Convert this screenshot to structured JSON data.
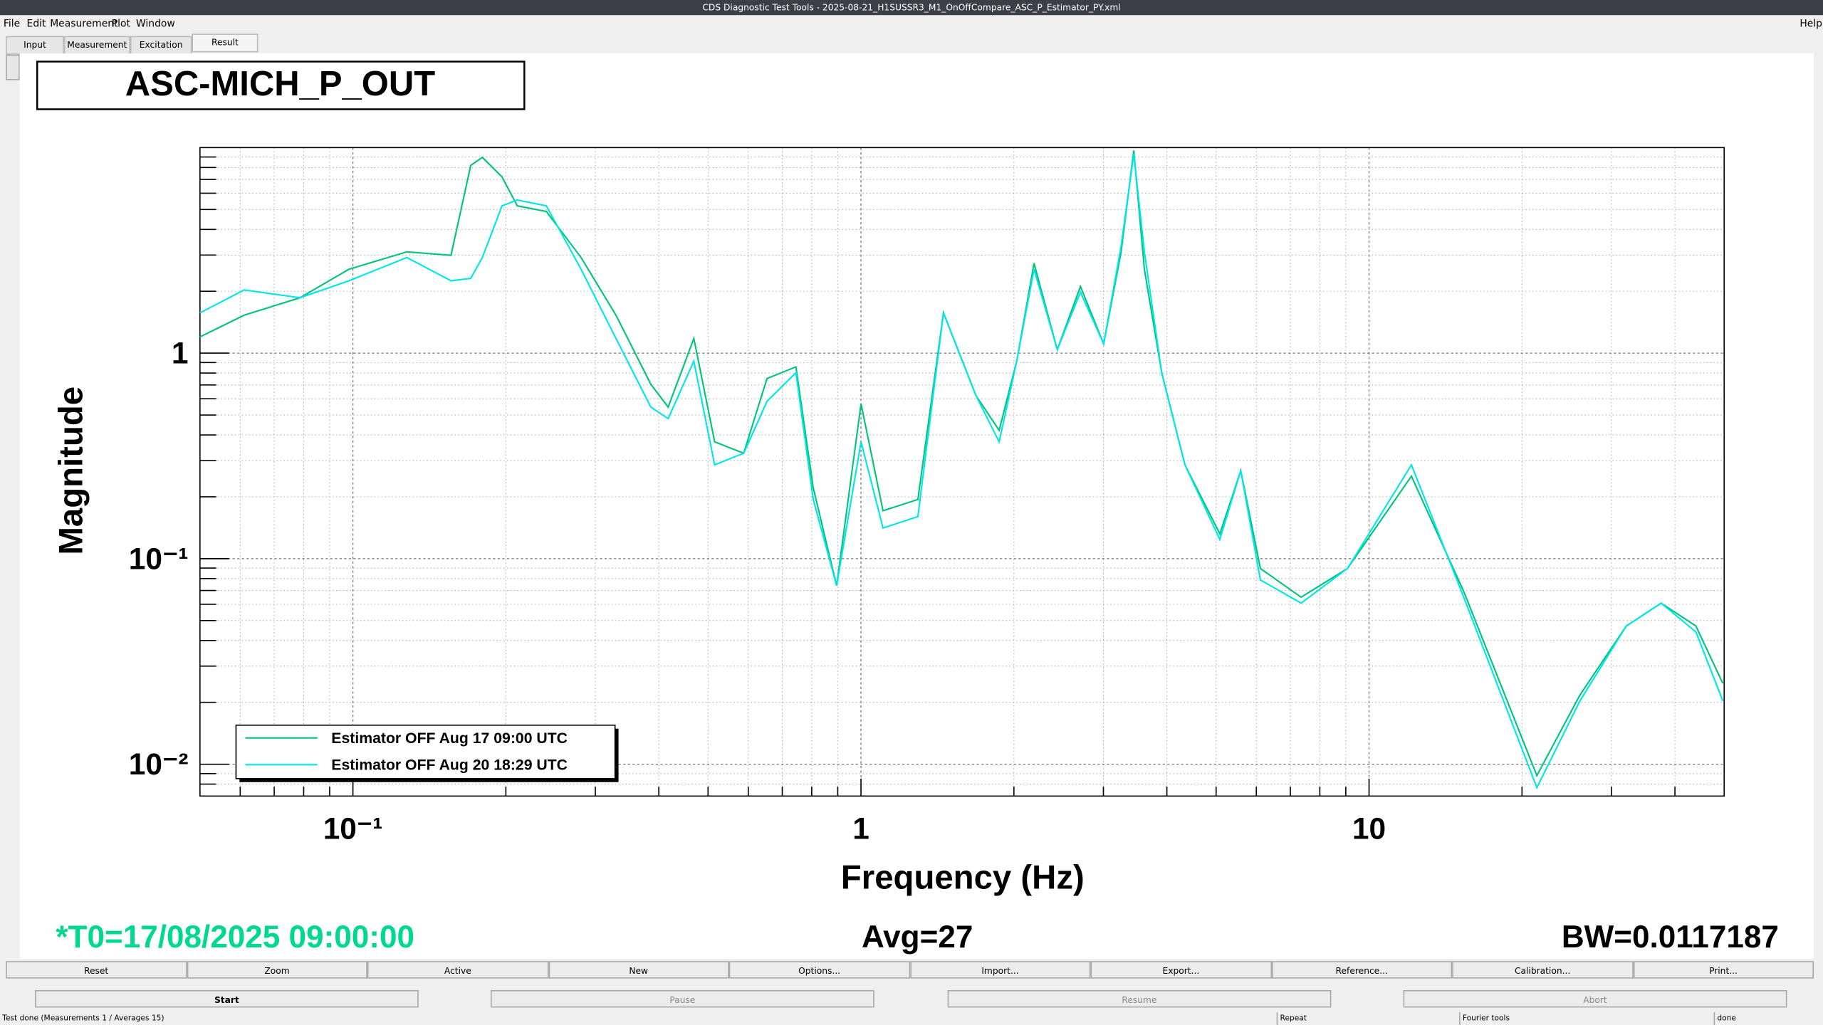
{
  "window": {
    "title": "CDS Diagnostic Test Tools - 2025-08-21_H1SUSSR3_M1_OnOffCompare_ASC_P_Estimator_PY.xml"
  },
  "menu": {
    "items": [
      "File",
      "Edit",
      "Measurement",
      "Plot",
      "Window"
    ],
    "help": "Help"
  },
  "tabs": [
    "Input",
    "Measurement",
    "Excitation",
    "Result"
  ],
  "plot_title": "ASC-MICH_P_OUT",
  "chart_data": {
    "type": "line",
    "xlabel": "Frequency (Hz)",
    "ylabel": "Magnitude",
    "log_x": true,
    "log_y": true,
    "grid": true,
    "legend": "lower-left",
    "x": [
      0.05,
      0.0611,
      0.0787,
      0.0982,
      0.1277,
      0.156,
      0.1706,
      0.1798,
      0.1966,
      0.2106,
      0.2402,
      0.2812,
      0.3294,
      0.3858,
      0.4174,
      0.4688,
      0.5152,
      0.5877,
      0.653,
      0.7447,
      0.8057,
      0.8953,
      1.0,
      1.105,
      1.294,
      1.453,
      1.684,
      1.871,
      2.025,
      2.191,
      2.434,
      2.704,
      3.004,
      3.251,
      3.444,
      3.612,
      3.908,
      4.342,
      5.086,
      5.59,
      6.113,
      7.351,
      9.07,
      12.12,
      15.36,
      21.4,
      26.0,
      32.08,
      37.57,
      44.0,
      49.7
    ],
    "series": [
      {
        "name": "Estimator OFF Aug 17 09:00 UTC",
        "color": "#00c47a",
        "values": [
          1.2,
          1.53,
          1.86,
          2.56,
          3.11,
          2.99,
          8.19,
          8.96,
          7.2,
          5.21,
          4.89,
          2.92,
          1.53,
          0.706,
          0.546,
          1.18,
          0.37,
          0.326,
          0.753,
          0.857,
          0.221,
          0.0739,
          0.567,
          0.171,
          0.194,
          1.57,
          0.621,
          0.421,
          0.914,
          2.735,
          1.04,
          2.11,
          1.11,
          3.11,
          9.68,
          2.56,
          0.803,
          0.286,
          0.132,
          0.268,
          0.0896,
          0.0649,
          0.0896,
          0.252,
          0.0692,
          0.0088,
          0.0217,
          0.047,
          0.0608,
          0.047,
          0.0247
        ]
      },
      {
        "name": "Estimator OFF Aug 20 18:29 UTC",
        "color": "#00e6e6",
        "values": [
          1.57,
          2.03,
          1.86,
          2.25,
          2.92,
          2.25,
          2.31,
          2.92,
          5.21,
          5.56,
          5.21,
          2.56,
          1.18,
          0.546,
          0.48,
          0.914,
          0.286,
          0.326,
          0.582,
          0.803,
          0.194,
          0.0739,
          0.37,
          0.141,
          0.16,
          1.57,
          0.621,
          0.37,
          0.914,
          2.56,
          1.04,
          1.98,
          1.11,
          3.32,
          9.31,
          3.11,
          0.803,
          0.286,
          0.124,
          0.268,
          0.0788,
          0.0608,
          0.0896,
          0.286,
          0.0649,
          0.0077,
          0.0203,
          0.047,
          0.0608,
          0.044,
          0.0203
        ]
      }
    ],
    "xlim": [
      0.05,
      50
    ],
    "ylim": [
      0.007,
      10
    ],
    "xticks": [
      {
        "value": 0.1,
        "label": "10⁻¹"
      },
      1,
      10
    ],
    "yticks": [
      {
        "value": 0.01,
        "label": "10⁻²"
      },
      {
        "value": 0.1,
        "label": "10⁻¹"
      },
      1
    ]
  },
  "info": {
    "t0": "*T0=17/08/2025 09:00:00",
    "avg": "Avg=27",
    "bw": "BW=0.0117187"
  },
  "buttons": [
    "Reset",
    "Zoom",
    "Active",
    "New",
    "Options...",
    "Import...",
    "Export...",
    "Reference...",
    "Calibration...",
    "Print..."
  ],
  "run_buttons": [
    "Start",
    "Pause",
    "Resume",
    "Abort"
  ],
  "status": [
    "Test done (Measurements 1 / Averages 15)",
    "Repeat",
    "Fourier tools",
    "done"
  ]
}
